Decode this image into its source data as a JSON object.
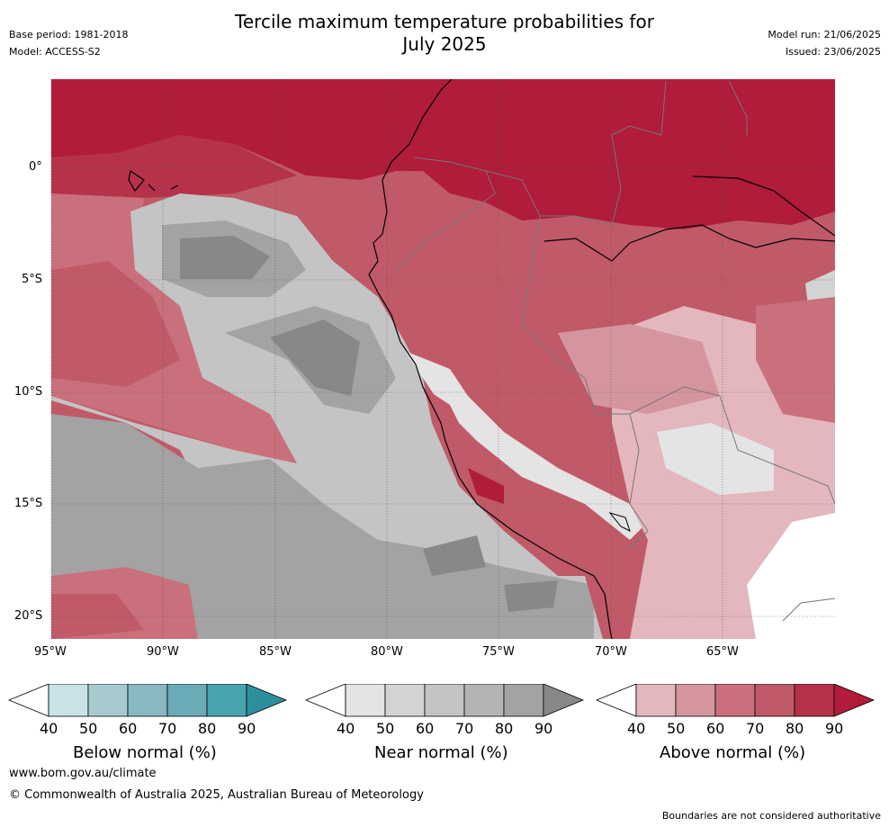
{
  "header": {
    "title_line1": "Tercile maximum temperature probabilities for",
    "title_line2": "July 2025",
    "base_period": "Base period: 1981-2018",
    "model": "Model: ACCESS-S2",
    "model_run": "Model run: 21/06/2025",
    "issued": "Issued: 23/06/2025"
  },
  "map": {
    "lat_labels": [
      "0°",
      "5°S",
      "10°S",
      "15°S",
      "20°S"
    ],
    "lon_labels": [
      "95°W",
      "90°W",
      "85°W",
      "80°W",
      "75°W",
      "70°W",
      "65°W"
    ]
  },
  "colorbars": [
    {
      "id": "below",
      "title": "Below normal (%)",
      "ticks": [
        "40",
        "50",
        "60",
        "70",
        "80",
        "90"
      ],
      "colors": [
        "#c9e2e6",
        "#a7cacf",
        "#88b8c2",
        "#6aabb6",
        "#49a2b0",
        "#2c8f9e"
      ]
    },
    {
      "id": "near",
      "title": "Near normal (%)",
      "ticks": [
        "40",
        "50",
        "60",
        "70",
        "80",
        "90"
      ],
      "colors": [
        "#e4e4e4",
        "#d3d3d3",
        "#c4c4c4",
        "#b4b4b4",
        "#a3a3a3",
        "#888888"
      ]
    },
    {
      "id": "above",
      "title": "Above normal (%)",
      "ticks": [
        "40",
        "50",
        "60",
        "70",
        "80",
        "90"
      ],
      "colors": [
        "#e3b7bd",
        "#d5959e",
        "#c9707c",
        "#c05a68",
        "#b5324a",
        "#b01c3a"
      ]
    }
  ],
  "footer": {
    "website": "www.bom.gov.au/climate",
    "copyright": "© Commonwealth of Australia 2025, Australian Bureau of Meteorology",
    "disclaimer": "Boundaries are not considered authoritative"
  }
}
